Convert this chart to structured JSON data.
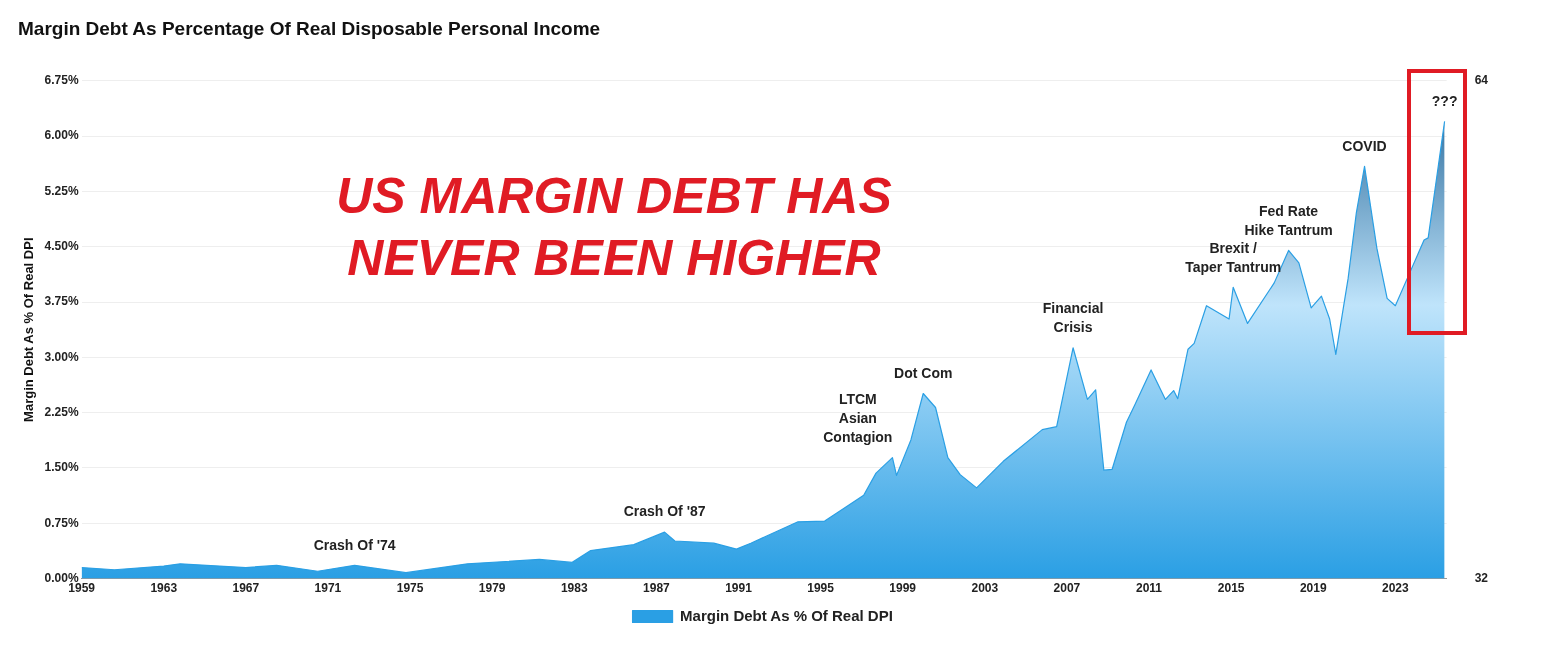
{
  "chart_data": {
    "type": "area",
    "title": "Margin Debt As Percentage Of Real Disposable Personal Income",
    "ylabel": "Margin Debt As % Of Real DPI",
    "xlim": [
      1959,
      2025.5
    ],
    "xticks": [
      1959,
      1963,
      1967,
      1971,
      1975,
      1979,
      1983,
      1987,
      1991,
      1995,
      1999,
      2003,
      2007,
      2011,
      2015,
      2019,
      2023
    ],
    "ylim": [
      0,
      6.75
    ],
    "yticks": [
      {
        "value": 0,
        "label": "0.00%"
      },
      {
        "value": 0.75,
        "label": "0.75%"
      },
      {
        "value": 1.5,
        "label": "1.50%"
      },
      {
        "value": 2.25,
        "label": "2.25%"
      },
      {
        "value": 3,
        "label": "3.00%"
      },
      {
        "value": 3.75,
        "label": "3.75%"
      },
      {
        "value": 4.5,
        "label": "4.50%"
      },
      {
        "value": 5.25,
        "label": "5.25%"
      },
      {
        "value": 6,
        "label": "6.00%"
      },
      {
        "value": 6.75,
        "label": "6.75%"
      }
    ],
    "y2lim": [
      32,
      64
    ],
    "y2ticks": [
      32,
      64
    ],
    "grid": "y",
    "legend": "bottom",
    "series": [
      {
        "name": "Margin Debt As % Of Real DPI",
        "color": "#2a9fe4",
        "x": [
          1959,
          1960.6,
          1963,
          1963.8,
          1967,
          1968.5,
          1970.5,
          1972.3,
          1974.8,
          1977.8,
          1981.3,
          1982.9,
          1983.8,
          1985.9,
          1987.4,
          1987.9,
          1989.8,
          1990.9,
          1991.6,
          1993.9,
          1995.2,
          1997.1,
          1997.7,
          1998.5,
          1998.7,
          1999.4,
          2000.0,
          2000.6,
          2001.2,
          2001.8,
          2002.6,
          2003.9,
          2005.8,
          2006.5,
          2007.3,
          2008.0,
          2008.4,
          2008.8,
          2009.2,
          2009.9,
          2010.3,
          2011.1,
          2011.8,
          2012.2,
          2012.4,
          2012.9,
          2013.2,
          2013.8,
          2014.9,
          2015.1,
          2015.8,
          2017.1,
          2017.8,
          2018.3,
          2018.9,
          2019.4,
          2019.8,
          2020.1,
          2020.7,
          2021.1,
          2021.5,
          2022.1,
          2022.6,
          2023.0,
          2023.8,
          2024.4,
          2024.6,
          2025.4
        ],
        "values": [
          0.15,
          0.12,
          0.17,
          0.2,
          0.15,
          0.18,
          0.1,
          0.18,
          0.08,
          0.2,
          0.26,
          0.22,
          0.38,
          0.46,
          0.63,
          0.51,
          0.48,
          0.4,
          0.48,
          0.77,
          0.78,
          1.13,
          1.43,
          1.64,
          1.4,
          1.88,
          2.51,
          2.32,
          1.64,
          1.41,
          1.23,
          1.59,
          2.02,
          2.06,
          3.13,
          2.43,
          2.56,
          1.47,
          1.48,
          2.12,
          2.35,
          2.83,
          2.43,
          2.55,
          2.44,
          3.11,
          3.19,
          3.7,
          3.52,
          3.95,
          3.46,
          4.01,
          4.45,
          4.28,
          3.67,
          3.83,
          3.52,
          3.04,
          4.07,
          4.96,
          5.59,
          4.48,
          3.8,
          3.7,
          4.21,
          4.59,
          4.62,
          6.2
        ]
      }
    ],
    "annotations": [
      "US MARGIN DEBT HAS\nNEVER BEEN HIGHER",
      {
        "text": "Crash Of '74",
        "x": 1972.3,
        "y": 0.18
      },
      {
        "text": "Crash Of '87",
        "x": 1987.4,
        "y": 0.63
      },
      {
        "text": "LTCM\nAsian\nContagion",
        "x": 1998.5,
        "y": 1.64
      },
      {
        "text": "Dot Com",
        "x": 2000.0,
        "y": 2.51
      },
      {
        "text": "Financial\nCrisis",
        "x": 2007.3,
        "y": 3.13
      },
      {
        "text": "Brexit /\nTaper Tantrum",
        "x": 2015.1,
        "y": 3.95
      },
      {
        "text": "Fed Rate\nHike Tantrum",
        "x": 2017.8,
        "y": 4.45
      },
      {
        "text": "COVID",
        "x": 2021.5,
        "y": 5.59
      },
      {
        "text": "???",
        "x": 2025.4,
        "y": 6.2
      }
    ]
  }
}
